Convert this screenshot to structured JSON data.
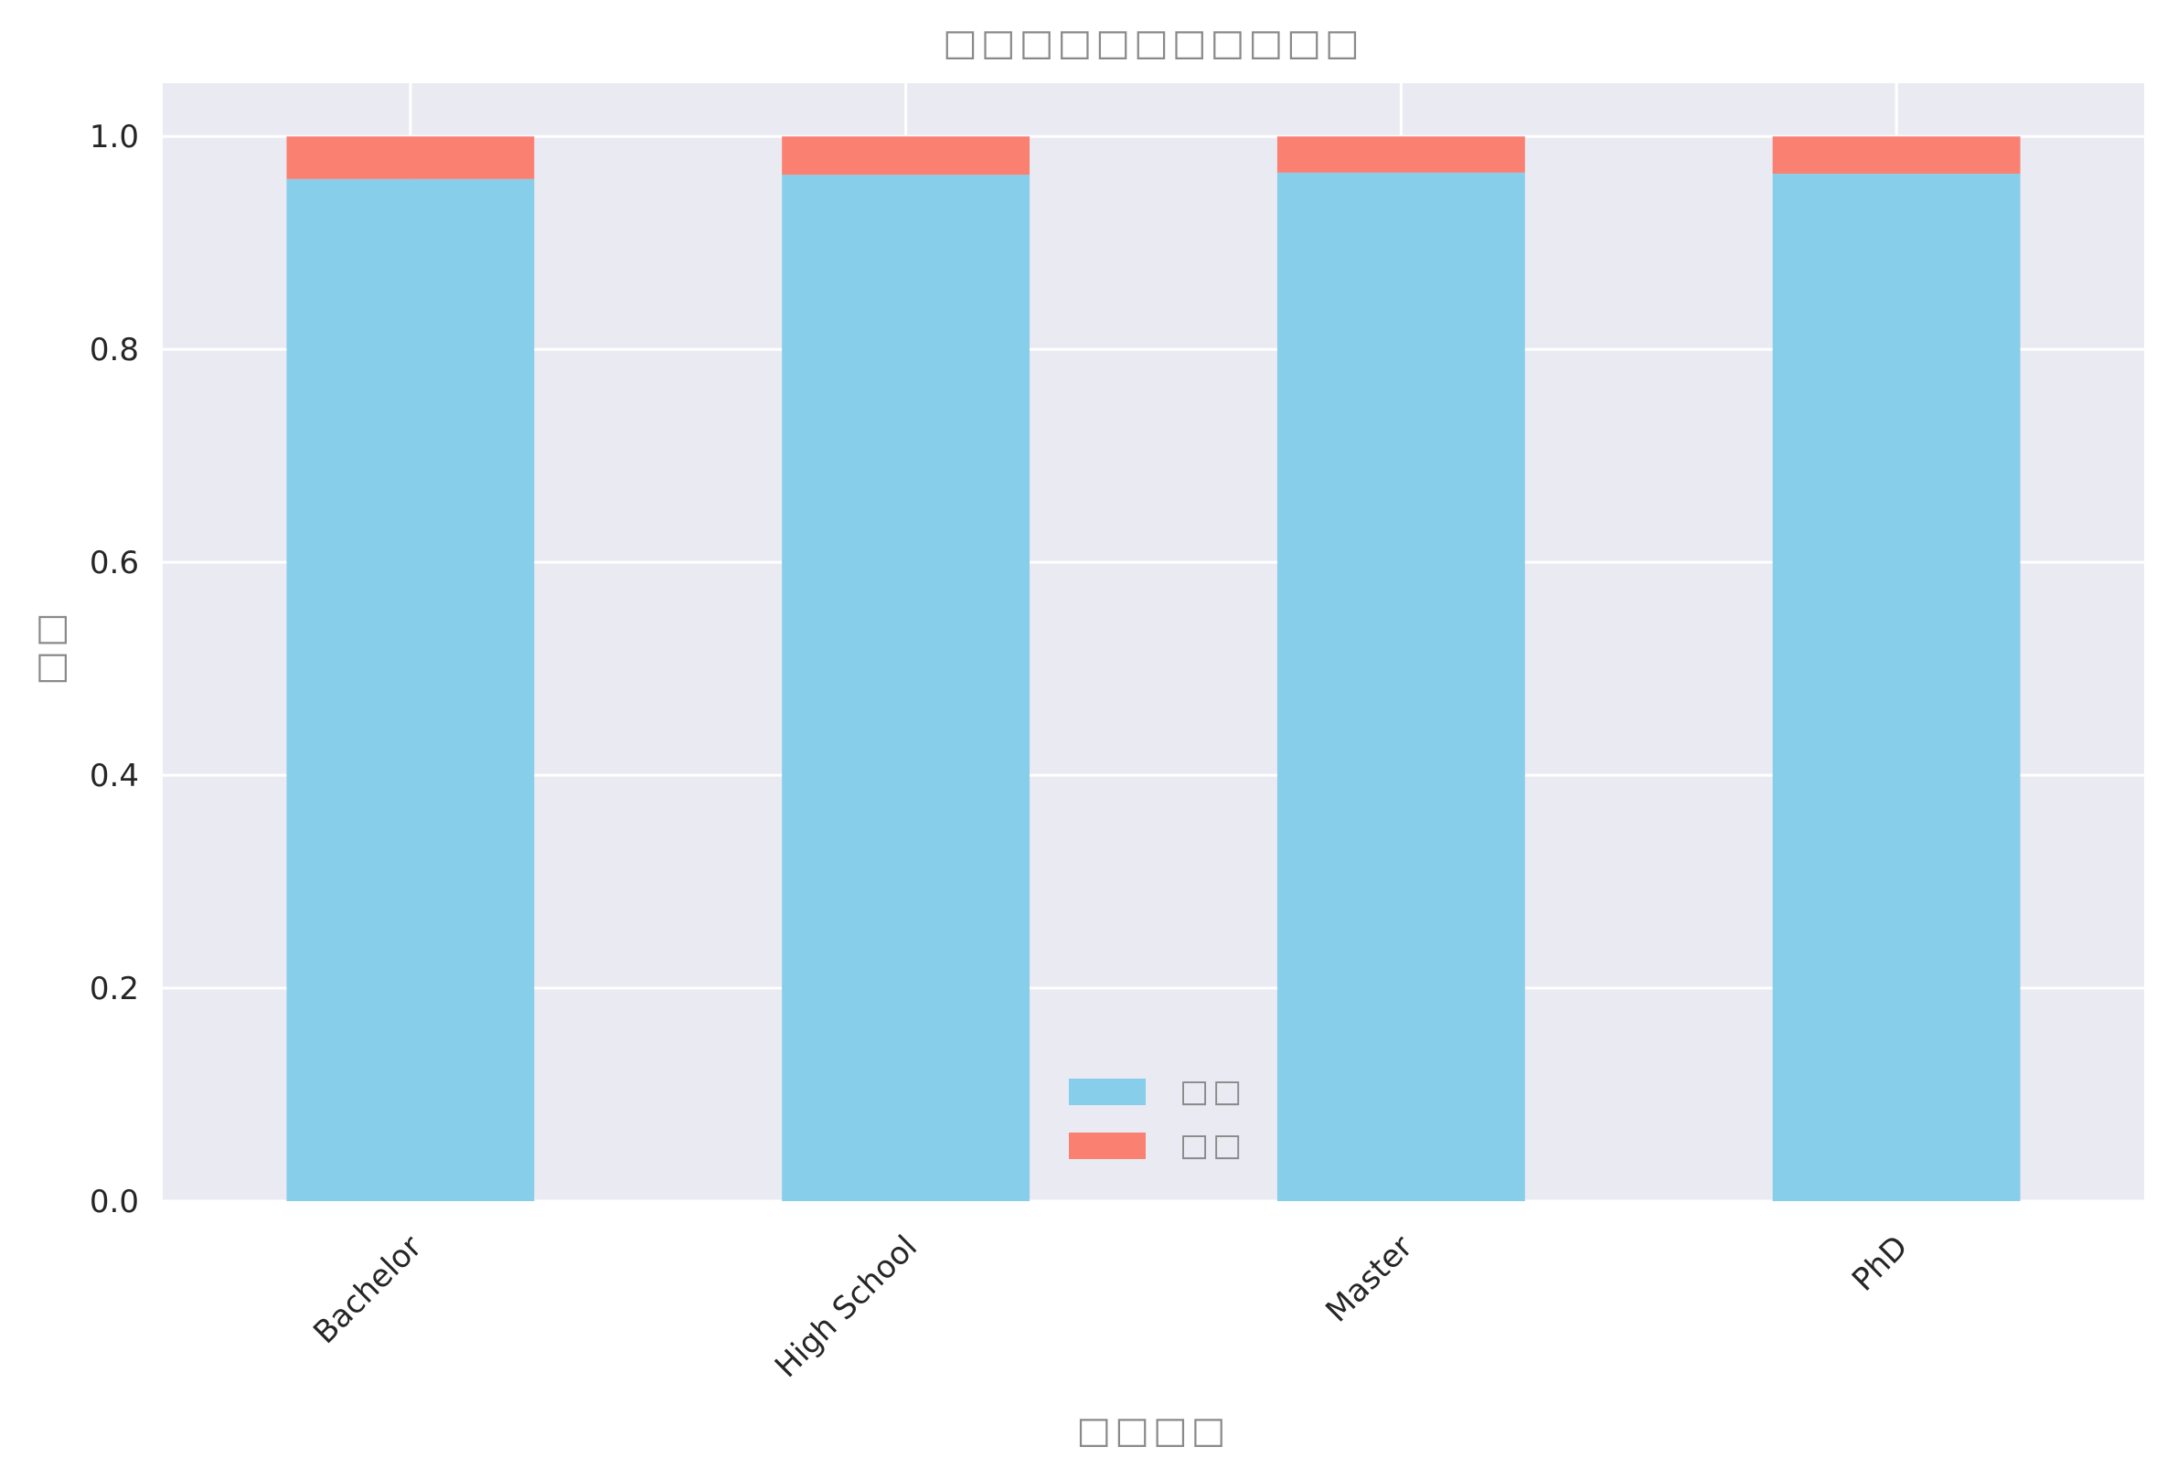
{
  "chart_data": {
    "type": "bar",
    "stacked": true,
    "title": "□□□□□□□□□□□",
    "xlabel": "□□□□",
    "ylabel": "□□",
    "categories": [
      "Bachelor",
      "High School",
      "Master",
      "PhD"
    ],
    "series": [
      {
        "name": "□□",
        "values": [
          0.96,
          0.964,
          0.966,
          0.965
        ],
        "color": "#87CEEB"
      },
      {
        "name": "□□",
        "values": [
          0.04,
          0.036,
          0.034,
          0.035
        ],
        "color": "#FA8072"
      }
    ],
    "ylim": [
      0,
      1.05
    ],
    "yticks": [
      "0.0",
      "0.2",
      "0.4",
      "0.6",
      "0.8",
      "1.0"
    ],
    "grid": true,
    "legend_position": "lower-center",
    "background_color": "#EAEAF2",
    "grid_color": "#FFFFFF"
  }
}
